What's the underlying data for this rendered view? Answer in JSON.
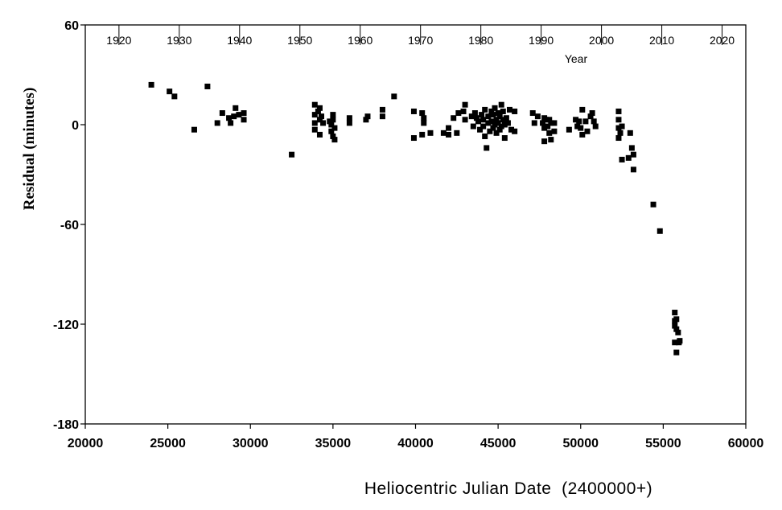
{
  "chart_data": {
    "type": "scatter",
    "xlabel": "Heliocentric Julian Date  (2400000+)",
    "ylabel": "Residual (minutes)",
    "top_axis_label": "Year",
    "xlim": [
      20000,
      60000
    ],
    "ylim": [
      -180,
      60
    ],
    "x_ticks": [
      20000,
      25000,
      30000,
      35000,
      40000,
      45000,
      50000,
      55000,
      60000
    ],
    "y_ticks": [
      60,
      0,
      -60,
      -120,
      -180
    ],
    "top_ticks": [
      {
        "label": "1920",
        "x": 22040
      },
      {
        "label": "1930",
        "x": 25692
      },
      {
        "label": "1940",
        "x": 29344
      },
      {
        "label": "1950",
        "x": 32997
      },
      {
        "label": "1960",
        "x": 36650
      },
      {
        "label": "1970",
        "x": 40302
      },
      {
        "label": "1980",
        "x": 43955
      },
      {
        "label": "1990",
        "x": 47607
      },
      {
        "label": "2000",
        "x": 51260
      },
      {
        "label": "2010",
        "x": 54913
      },
      {
        "label": "2020",
        "x": 58565
      }
    ],
    "grid": false,
    "points": [
      [
        24000,
        24
      ],
      [
        25100,
        20
      ],
      [
        25400,
        17
      ],
      [
        26600,
        -3
      ],
      [
        27400,
        23
      ],
      [
        28000,
        1
      ],
      [
        28300,
        7
      ],
      [
        28700,
        4
      ],
      [
        28800,
        1
      ],
      [
        29000,
        5
      ],
      [
        29100,
        10
      ],
      [
        29300,
        6
      ],
      [
        29600,
        7
      ],
      [
        29600,
        3
      ],
      [
        32500,
        -18
      ],
      [
        33900,
        12
      ],
      [
        33900,
        6
      ],
      [
        33900,
        1
      ],
      [
        33900,
        -3
      ],
      [
        34100,
        8
      ],
      [
        34200,
        3
      ],
      [
        34200,
        -6
      ],
      [
        34200,
        10
      ],
      [
        34400,
        1
      ],
      [
        34300,
        5
      ],
      [
        34800,
        2
      ],
      [
        34900,
        0
      ],
      [
        34900,
        -4
      ],
      [
        35000,
        6
      ],
      [
        35000,
        -7
      ],
      [
        35100,
        -9
      ],
      [
        35000,
        3
      ],
      [
        35100,
        -2
      ],
      [
        36000,
        4
      ],
      [
        36000,
        1
      ],
      [
        37000,
        3
      ],
      [
        37100,
        5
      ],
      [
        38000,
        9
      ],
      [
        38000,
        5
      ],
      [
        38700,
        17
      ],
      [
        39900,
        8
      ],
      [
        39900,
        -8
      ],
      [
        40400,
        7
      ],
      [
        40400,
        -6
      ],
      [
        40500,
        1
      ],
      [
        40500,
        4
      ],
      [
        40900,
        -5
      ],
      [
        41700,
        -5
      ],
      [
        42000,
        -2
      ],
      [
        42000,
        -6
      ],
      [
        42300,
        4
      ],
      [
        42500,
        -5
      ],
      [
        42600,
        7
      ],
      [
        42900,
        8
      ],
      [
        43000,
        12
      ],
      [
        43000,
        3
      ],
      [
        43400,
        5
      ],
      [
        43500,
        -1
      ],
      [
        43600,
        7
      ],
      [
        43700,
        4
      ],
      [
        43800,
        2
      ],
      [
        43900,
        -3
      ],
      [
        44000,
        6
      ],
      [
        44100,
        -1
      ],
      [
        44100,
        3
      ],
      [
        44200,
        9
      ],
      [
        44200,
        -7
      ],
      [
        44300,
        -14
      ],
      [
        44400,
        1
      ],
      [
        44400,
        5
      ],
      [
        44500,
        -4
      ],
      [
        44600,
        8
      ],
      [
        44600,
        2
      ],
      [
        44700,
        -2
      ],
      [
        44700,
        6
      ],
      [
        44800,
        0
      ],
      [
        44800,
        10
      ],
      [
        44900,
        3
      ],
      [
        44900,
        -5
      ],
      [
        45000,
        7
      ],
      [
        45000,
        1
      ],
      [
        45100,
        -3
      ],
      [
        45100,
        5
      ],
      [
        45200,
        12
      ],
      [
        45200,
        -1
      ],
      [
        45300,
        8
      ],
      [
        45300,
        3
      ],
      [
        45400,
        -8
      ],
      [
        45400,
        0
      ],
      [
        45500,
        4
      ],
      [
        45600,
        1
      ],
      [
        45700,
        9
      ],
      [
        45800,
        -3
      ],
      [
        46000,
        8
      ],
      [
        46000,
        -4
      ],
      [
        47100,
        7
      ],
      [
        47200,
        1
      ],
      [
        47400,
        5
      ],
      [
        47700,
        1
      ],
      [
        47800,
        4
      ],
      [
        47800,
        -2
      ],
      [
        47800,
        -10
      ],
      [
        47900,
        3
      ],
      [
        48000,
        -1
      ],
      [
        48100,
        3
      ],
      [
        48100,
        -5
      ],
      [
        48200,
        1
      ],
      [
        48200,
        -9
      ],
      [
        48400,
        1
      ],
      [
        48400,
        -4
      ],
      [
        49300,
        -3
      ],
      [
        49700,
        3
      ],
      [
        49800,
        -1
      ],
      [
        49900,
        2
      ],
      [
        50000,
        -2
      ],
      [
        50100,
        9
      ],
      [
        50100,
        -6
      ],
      [
        50300,
        2
      ],
      [
        50400,
        -4
      ],
      [
        50600,
        5
      ],
      [
        50700,
        7
      ],
      [
        50800,
        2
      ],
      [
        50900,
        -1
      ],
      [
        52300,
        8
      ],
      [
        52300,
        3
      ],
      [
        52300,
        -2
      ],
      [
        52300,
        -8
      ],
      [
        52400,
        -5
      ],
      [
        52500,
        -1
      ],
      [
        52500,
        -21
      ],
      [
        52900,
        -20
      ],
      [
        53000,
        -5
      ],
      [
        53100,
        -14
      ],
      [
        53200,
        -18
      ],
      [
        53200,
        -27
      ],
      [
        54400,
        -48
      ],
      [
        54800,
        -64
      ],
      [
        55700,
        -113
      ],
      [
        55700,
        -118
      ],
      [
        55800,
        -123
      ],
      [
        55700,
        -121
      ],
      [
        55800,
        -117
      ],
      [
        55700,
        -131
      ],
      [
        55800,
        -137
      ],
      [
        55900,
        -125
      ],
      [
        56000,
        -130
      ],
      [
        55950,
        -131
      ]
    ]
  }
}
